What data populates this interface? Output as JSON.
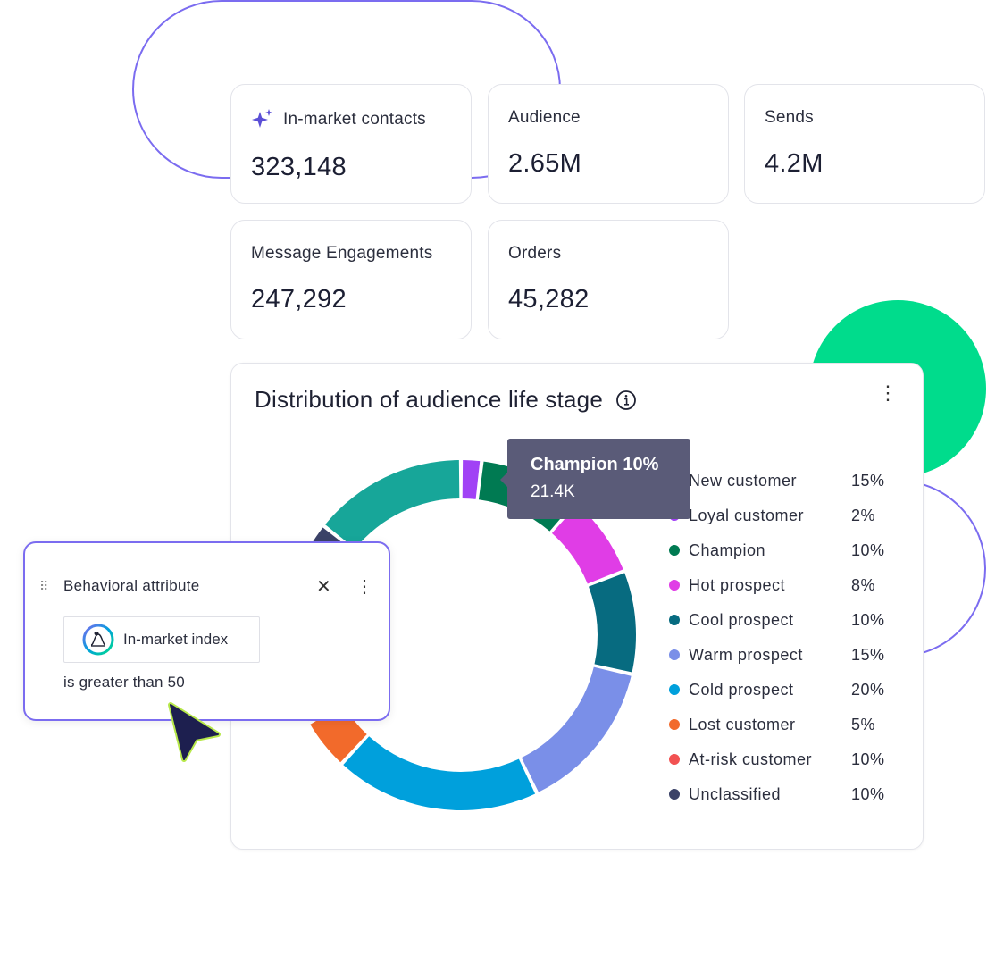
{
  "metrics": [
    {
      "label": "In-market contacts",
      "value": "323,148",
      "icon": "sparkle-icon"
    },
    {
      "label": "Audience",
      "value": "2.65M"
    },
    {
      "label": "Sends",
      "value": "4.2M"
    },
    {
      "label": "Message Engagements",
      "value": "247,292"
    },
    {
      "label": "Orders",
      "value": "45,282"
    }
  ],
  "chart_card": {
    "title": "Distribution of audience life stage",
    "info_icon": "info-icon",
    "menu_icon": "more-vertical-icon"
  },
  "tooltip": {
    "title": "Champion 10%",
    "value": "21.4K"
  },
  "attribute_card": {
    "title": "Behavioral attribute",
    "chip_label": "In-market index",
    "condition": "is greater than 50",
    "close_icon": "close-icon",
    "menu_icon": "more-vertical-icon",
    "drag_icon": "drag-handle-icon"
  },
  "colors": {
    "accent_purple": "#7b6cf0",
    "accent_green": "#00dc8c",
    "tooltip_bg": "#5a5b78"
  },
  "chart_data": {
    "type": "pie",
    "title": "Distribution of audience life stage",
    "legend_position": "right",
    "series": [
      {
        "name": "New customer",
        "pct_label": "15%",
        "value": 15,
        "color": "#17a699"
      },
      {
        "name": "Loyal customer",
        "pct_label": "2%",
        "value": 2,
        "color": "#a142f5"
      },
      {
        "name": "Champion",
        "pct_label": "10%",
        "value": 10,
        "color": "#007a52"
      },
      {
        "name": "Hot prospect",
        "pct_label": "8%",
        "value": 8,
        "color": "#e03de6"
      },
      {
        "name": "Cool prospect",
        "pct_label": "10%",
        "value": 10,
        "color": "#076b80"
      },
      {
        "name": "Warm prospect",
        "pct_label": "15%",
        "value": 15,
        "color": "#7a8fe8"
      },
      {
        "name": "Cold prospect",
        "pct_label": "20%",
        "value": 20,
        "color": "#00a0dc"
      },
      {
        "name": "Lost customer",
        "pct_label": "5%",
        "value": 5,
        "color": "#f26a2b"
      },
      {
        "name": "At-risk customer",
        "pct_label": "10%",
        "value": 10,
        "color": "#f25252"
      },
      {
        "name": "Unclassified",
        "pct_label": "10%",
        "value": 10,
        "color": "#3b4268"
      }
    ]
  }
}
